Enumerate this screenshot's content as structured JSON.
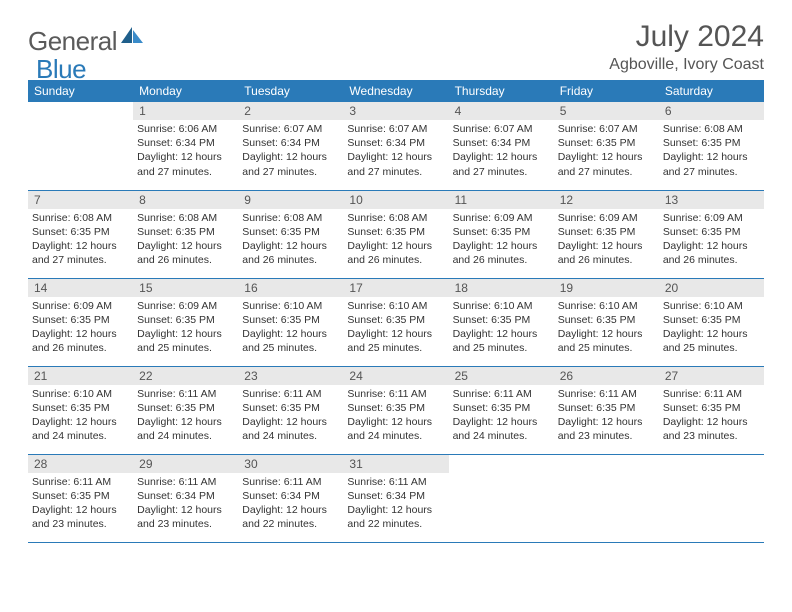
{
  "logo": {
    "text1": "General",
    "text2": "Blue"
  },
  "title": "July 2024",
  "location": "Agboville, Ivory Coast",
  "colors": {
    "header_bg": "#2a7ab8",
    "header_text": "#ffffff",
    "daynum_bg": "#e8e8e8",
    "border": "#2a7ab8",
    "text": "#333333",
    "title_text": "#555555"
  },
  "day_headers": [
    "Sunday",
    "Monday",
    "Tuesday",
    "Wednesday",
    "Thursday",
    "Friday",
    "Saturday"
  ],
  "weeks": [
    [
      {
        "num": "",
        "lines": []
      },
      {
        "num": "1",
        "lines": [
          "Sunrise: 6:06 AM",
          "Sunset: 6:34 PM",
          "Daylight: 12 hours",
          "and 27 minutes."
        ]
      },
      {
        "num": "2",
        "lines": [
          "Sunrise: 6:07 AM",
          "Sunset: 6:34 PM",
          "Daylight: 12 hours",
          "and 27 minutes."
        ]
      },
      {
        "num": "3",
        "lines": [
          "Sunrise: 6:07 AM",
          "Sunset: 6:34 PM",
          "Daylight: 12 hours",
          "and 27 minutes."
        ]
      },
      {
        "num": "4",
        "lines": [
          "Sunrise: 6:07 AM",
          "Sunset: 6:34 PM",
          "Daylight: 12 hours",
          "and 27 minutes."
        ]
      },
      {
        "num": "5",
        "lines": [
          "Sunrise: 6:07 AM",
          "Sunset: 6:35 PM",
          "Daylight: 12 hours",
          "and 27 minutes."
        ]
      },
      {
        "num": "6",
        "lines": [
          "Sunrise: 6:08 AM",
          "Sunset: 6:35 PM",
          "Daylight: 12 hours",
          "and 27 minutes."
        ]
      }
    ],
    [
      {
        "num": "7",
        "lines": [
          "Sunrise: 6:08 AM",
          "Sunset: 6:35 PM",
          "Daylight: 12 hours",
          "and 27 minutes."
        ]
      },
      {
        "num": "8",
        "lines": [
          "Sunrise: 6:08 AM",
          "Sunset: 6:35 PM",
          "Daylight: 12 hours",
          "and 26 minutes."
        ]
      },
      {
        "num": "9",
        "lines": [
          "Sunrise: 6:08 AM",
          "Sunset: 6:35 PM",
          "Daylight: 12 hours",
          "and 26 minutes."
        ]
      },
      {
        "num": "10",
        "lines": [
          "Sunrise: 6:08 AM",
          "Sunset: 6:35 PM",
          "Daylight: 12 hours",
          "and 26 minutes."
        ]
      },
      {
        "num": "11",
        "lines": [
          "Sunrise: 6:09 AM",
          "Sunset: 6:35 PM",
          "Daylight: 12 hours",
          "and 26 minutes."
        ]
      },
      {
        "num": "12",
        "lines": [
          "Sunrise: 6:09 AM",
          "Sunset: 6:35 PM",
          "Daylight: 12 hours",
          "and 26 minutes."
        ]
      },
      {
        "num": "13",
        "lines": [
          "Sunrise: 6:09 AM",
          "Sunset: 6:35 PM",
          "Daylight: 12 hours",
          "and 26 minutes."
        ]
      }
    ],
    [
      {
        "num": "14",
        "lines": [
          "Sunrise: 6:09 AM",
          "Sunset: 6:35 PM",
          "Daylight: 12 hours",
          "and 26 minutes."
        ]
      },
      {
        "num": "15",
        "lines": [
          "Sunrise: 6:09 AM",
          "Sunset: 6:35 PM",
          "Daylight: 12 hours",
          "and 25 minutes."
        ]
      },
      {
        "num": "16",
        "lines": [
          "Sunrise: 6:10 AM",
          "Sunset: 6:35 PM",
          "Daylight: 12 hours",
          "and 25 minutes."
        ]
      },
      {
        "num": "17",
        "lines": [
          "Sunrise: 6:10 AM",
          "Sunset: 6:35 PM",
          "Daylight: 12 hours",
          "and 25 minutes."
        ]
      },
      {
        "num": "18",
        "lines": [
          "Sunrise: 6:10 AM",
          "Sunset: 6:35 PM",
          "Daylight: 12 hours",
          "and 25 minutes."
        ]
      },
      {
        "num": "19",
        "lines": [
          "Sunrise: 6:10 AM",
          "Sunset: 6:35 PM",
          "Daylight: 12 hours",
          "and 25 minutes."
        ]
      },
      {
        "num": "20",
        "lines": [
          "Sunrise: 6:10 AM",
          "Sunset: 6:35 PM",
          "Daylight: 12 hours",
          "and 25 minutes."
        ]
      }
    ],
    [
      {
        "num": "21",
        "lines": [
          "Sunrise: 6:10 AM",
          "Sunset: 6:35 PM",
          "Daylight: 12 hours",
          "and 24 minutes."
        ]
      },
      {
        "num": "22",
        "lines": [
          "Sunrise: 6:11 AM",
          "Sunset: 6:35 PM",
          "Daylight: 12 hours",
          "and 24 minutes."
        ]
      },
      {
        "num": "23",
        "lines": [
          "Sunrise: 6:11 AM",
          "Sunset: 6:35 PM",
          "Daylight: 12 hours",
          "and 24 minutes."
        ]
      },
      {
        "num": "24",
        "lines": [
          "Sunrise: 6:11 AM",
          "Sunset: 6:35 PM",
          "Daylight: 12 hours",
          "and 24 minutes."
        ]
      },
      {
        "num": "25",
        "lines": [
          "Sunrise: 6:11 AM",
          "Sunset: 6:35 PM",
          "Daylight: 12 hours",
          "and 24 minutes."
        ]
      },
      {
        "num": "26",
        "lines": [
          "Sunrise: 6:11 AM",
          "Sunset: 6:35 PM",
          "Daylight: 12 hours",
          "and 23 minutes."
        ]
      },
      {
        "num": "27",
        "lines": [
          "Sunrise: 6:11 AM",
          "Sunset: 6:35 PM",
          "Daylight: 12 hours",
          "and 23 minutes."
        ]
      }
    ],
    [
      {
        "num": "28",
        "lines": [
          "Sunrise: 6:11 AM",
          "Sunset: 6:35 PM",
          "Daylight: 12 hours",
          "and 23 minutes."
        ]
      },
      {
        "num": "29",
        "lines": [
          "Sunrise: 6:11 AM",
          "Sunset: 6:34 PM",
          "Daylight: 12 hours",
          "and 23 minutes."
        ]
      },
      {
        "num": "30",
        "lines": [
          "Sunrise: 6:11 AM",
          "Sunset: 6:34 PM",
          "Daylight: 12 hours",
          "and 22 minutes."
        ]
      },
      {
        "num": "31",
        "lines": [
          "Sunrise: 6:11 AM",
          "Sunset: 6:34 PM",
          "Daylight: 12 hours",
          "and 22 minutes."
        ]
      },
      {
        "num": "",
        "lines": []
      },
      {
        "num": "",
        "lines": []
      },
      {
        "num": "",
        "lines": []
      }
    ]
  ]
}
